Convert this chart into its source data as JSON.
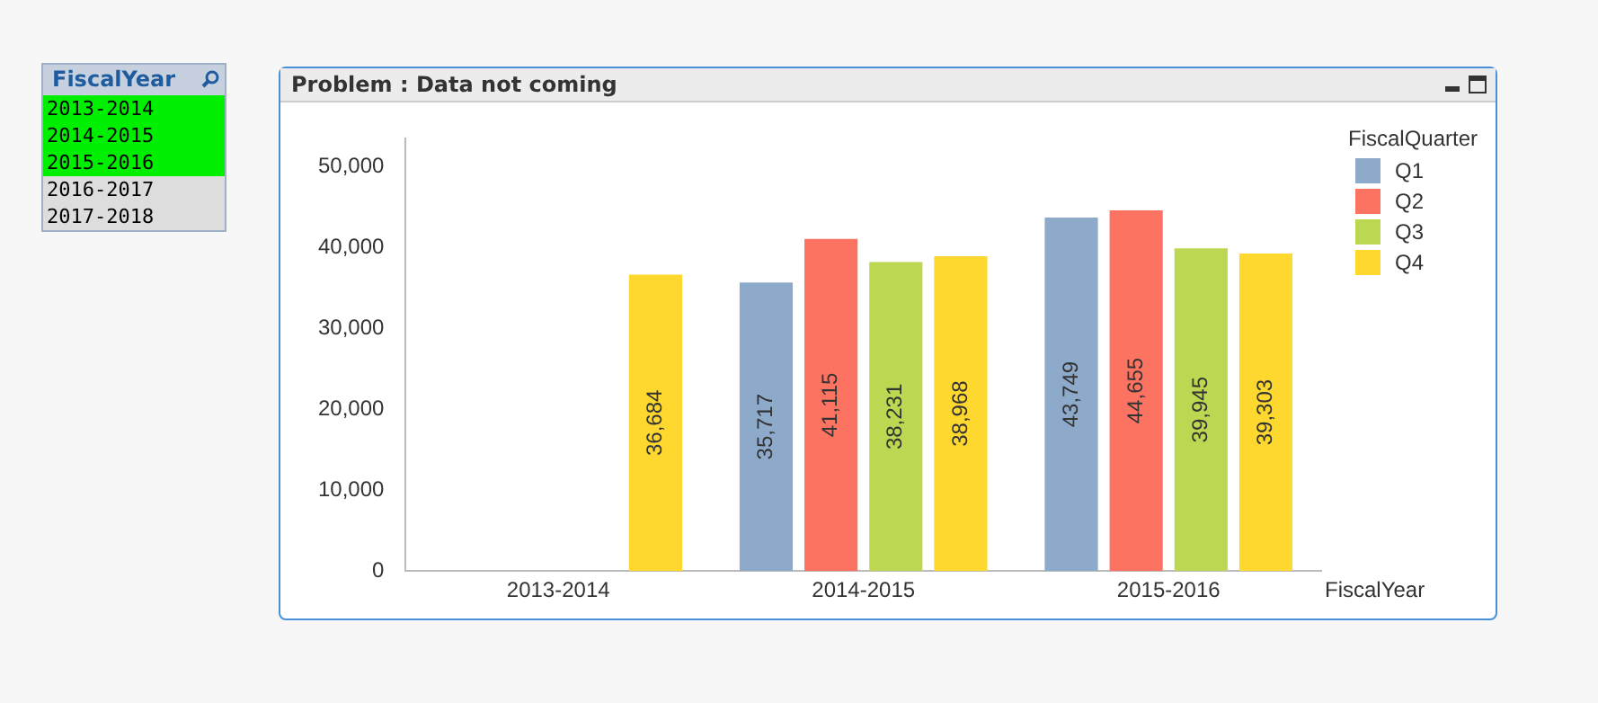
{
  "chart_data": {
    "type": "bar",
    "title": "Problem : Data not coming",
    "xlabel": "FiscalYear",
    "legend_title": "FiscalQuarter",
    "categories": [
      "2013-2014",
      "2014-2015",
      "2015-2016"
    ],
    "series": [
      {
        "name": "Q1",
        "color": "#8eaacb",
        "values": [
          null,
          35717,
          43749
        ],
        "value_labels": [
          null,
          "35,717",
          "43,749"
        ]
      },
      {
        "name": "Q2",
        "color": "#fc7362",
        "values": [
          null,
          41115,
          44655
        ],
        "value_labels": [
          null,
          "41,115",
          "44,655"
        ]
      },
      {
        "name": "Q3",
        "color": "#bcd752",
        "values": [
          null,
          38231,
          39945
        ],
        "value_labels": [
          null,
          "38,231",
          "39,945"
        ]
      },
      {
        "name": "Q4",
        "color": "#fed82f",
        "values": [
          36684,
          38968,
          39303
        ],
        "value_labels": [
          "36,684",
          "38,968",
          "39,303"
        ]
      }
    ],
    "ylim": [
      0,
      53500
    ],
    "yticks": [
      0,
      {
        "value": 10000,
        "label": "10,000"
      },
      {
        "value": 20000,
        "label": "20,000"
      },
      {
        "value": 30000,
        "label": "30,000"
      },
      {
        "value": 40000,
        "label": "40,000"
      },
      {
        "value": 50000,
        "label": "50,000"
      }
    ],
    "grid": false,
    "legend": "top right",
    "annotations": [
      "FiscalYear",
      "2013-2014",
      "2014-2015",
      "2015-2016",
      "2016-2017",
      "2017-2018"
    ]
  }
}
